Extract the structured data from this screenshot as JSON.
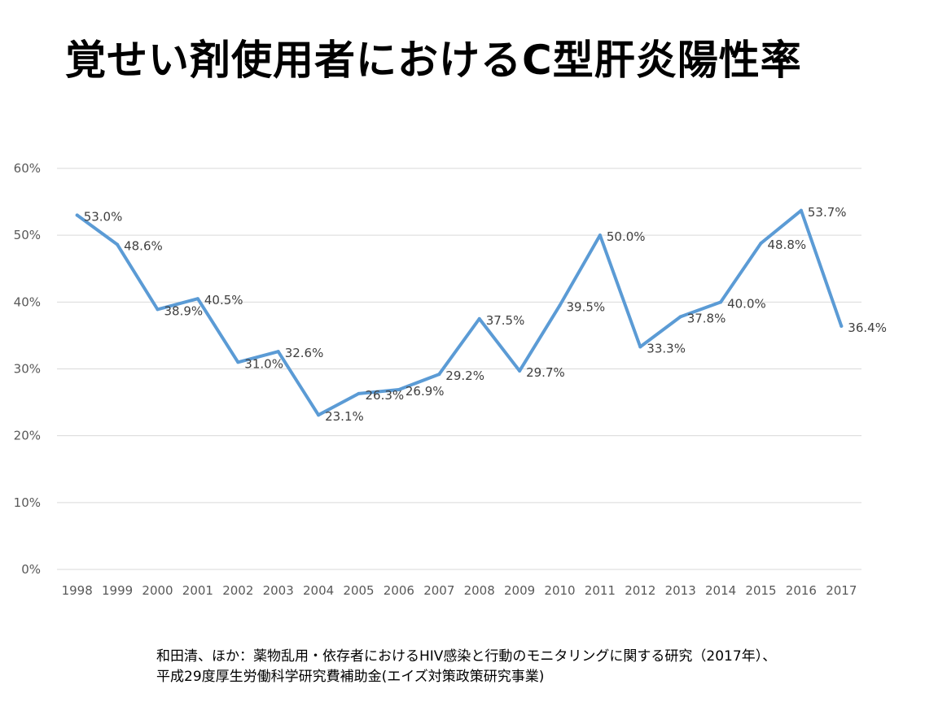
{
  "title": "覚せい剤使用者におけるC型肝炎陽性率",
  "source": {
    "line1": "和田清、ほか：薬物乱用・依存者におけるHIV感染と行動のモニタリングに関する研究（2017年）、",
    "line2": "平成29度厚生労働科学研究費補助金(エイズ対策政策研究事業)"
  },
  "colors": {
    "line": "#5B9BD5",
    "grid": "#D9D9D9",
    "tick_text": "#595959",
    "label_text": "#404040"
  },
  "chart_data": {
    "type": "line",
    "title": "",
    "xlabel": "",
    "ylabel": "",
    "categories": [
      "1998",
      "1999",
      "2000",
      "2001",
      "2002",
      "2003",
      "2004",
      "2005",
      "2006",
      "2007",
      "2008",
      "2009",
      "2010",
      "2011",
      "2012",
      "2013",
      "2014",
      "2015",
      "2016",
      "2017"
    ],
    "values": [
      53.0,
      48.6,
      38.9,
      40.5,
      31.0,
      32.6,
      23.1,
      26.3,
      26.9,
      29.2,
      37.5,
      29.7,
      39.5,
      50.0,
      33.3,
      37.8,
      40.0,
      48.8,
      53.7,
      36.4
    ],
    "data_labels": [
      "53.0%",
      "48.6%",
      "38.9%",
      "40.5%",
      "31.0%",
      "32.6%",
      "23.1%",
      "26.3%",
      "26.9%",
      "29.2%",
      "37.5%",
      "29.7%",
      "39.5%",
      "50.0%",
      "33.3%",
      "37.8%",
      "40.0%",
      "48.8%",
      "53.7%",
      "36.4%"
    ],
    "ylim": [
      0,
      60
    ],
    "yticks": [
      "0%",
      "10%",
      "20%",
      "30%",
      "40%",
      "50%",
      "60%"
    ],
    "grid": true,
    "legend": "none"
  }
}
